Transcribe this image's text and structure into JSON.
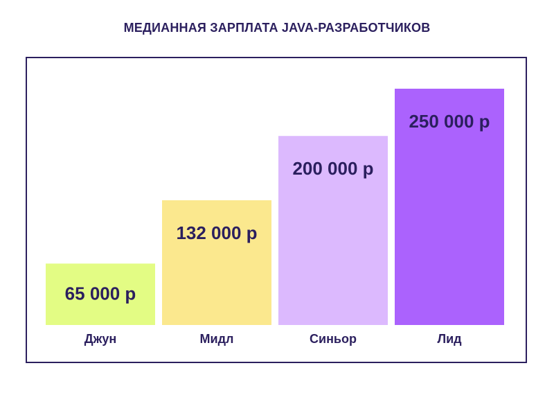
{
  "chart_data": {
    "type": "bar",
    "title": "МЕДИАННАЯ ЗАРПЛАТА JAVA-РАЗРАБОТЧИКОВ",
    "categories": [
      "Джун",
      "Мидл",
      "Синьор",
      "Лид"
    ],
    "values": [
      65000,
      132000,
      200000,
      250000
    ],
    "value_labels": [
      "65 000 р",
      "132 000 р",
      "200 000 р",
      "250 000 р"
    ],
    "colors": [
      "#e3fc84",
      "#fbe88e",
      "#dcb9fe",
      "#ab62fd"
    ],
    "text_color": "#2b1f5e",
    "ylim": [
      0,
      280000
    ],
    "grid": false
  }
}
